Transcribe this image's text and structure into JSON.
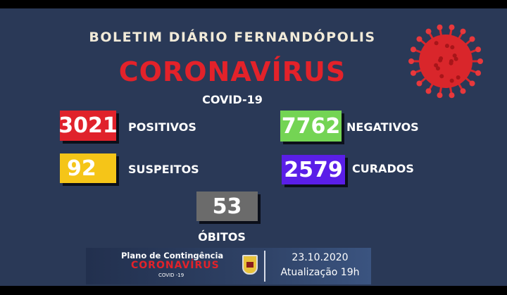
{
  "header": {
    "title": "BOLETIM DIÁRIO FERNANDÓPOLIS",
    "headline": "CORONAVÍRUS",
    "subtitle": "COVID-19"
  },
  "stats": [
    {
      "value": "3021",
      "label": "POSITIVOS",
      "color": "#e0222b"
    },
    {
      "value": "7762",
      "label": "NEGATIVOS",
      "color": "#74d454"
    },
    {
      "value": "92",
      "label": "SUSPEITOS",
      "color": "#f5c518"
    },
    {
      "value": "2579",
      "label": "CURADOS",
      "color": "#5a1ee8"
    },
    {
      "value": "53",
      "label": "ÓBITOS",
      "color": "#6b6b6b"
    }
  ],
  "banner": {
    "line1": "Plano de Contingência",
    "line2": "CORONAVÍRUS",
    "line3": "COVID -19",
    "date": "23.10.2020",
    "update": "Atualização 19h"
  },
  "icons": {
    "virus": "coronavirus-icon",
    "crest": "city-crest-icon"
  }
}
